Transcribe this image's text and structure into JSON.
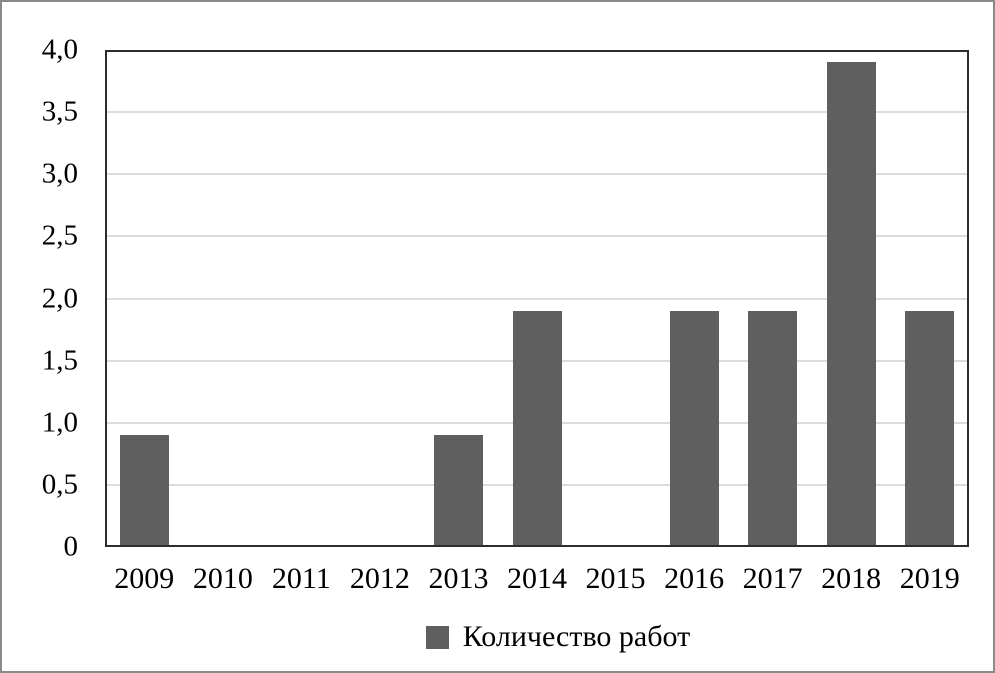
{
  "figure": {
    "background": "#ffffff",
    "frame_color": "#8a8a8a"
  },
  "chart_data": {
    "type": "bar",
    "title": "",
    "xlabel": "",
    "ylabel": "",
    "categories": [
      "2009",
      "2010",
      "2011",
      "2012",
      "2013",
      "2014",
      "2015",
      "2016",
      "2017",
      "2018",
      "2019"
    ],
    "series": [
      {
        "name": "Количество работ",
        "values": [
          0.9,
          0.02,
          0.02,
          0.02,
          0.9,
          1.9,
          0.02,
          1.9,
          1.9,
          3.9,
          1.9
        ]
      }
    ],
    "ylim": [
      0,
      4
    ],
    "y_ticks": [
      {
        "value": 0,
        "label": "0"
      },
      {
        "value": 0.5,
        "label": "0,5"
      },
      {
        "value": 1,
        "label": "1,0"
      },
      {
        "value": 1.5,
        "label": "1,5"
      },
      {
        "value": 2,
        "label": "2,0"
      },
      {
        "value": 2.5,
        "label": "2,5"
      },
      {
        "value": 3,
        "label": "3,0"
      },
      {
        "value": 3.5,
        "label": "3,5"
      },
      {
        "value": 4,
        "label": "4,0"
      }
    ],
    "grid": true,
    "legend_position": "bottom-center",
    "legend": "Количество работ",
    "colors": {
      "bar": "#5f5f5f",
      "gridline": "#dcdcdc",
      "plot_border": "#2d2d2d",
      "text": "#000000"
    }
  }
}
